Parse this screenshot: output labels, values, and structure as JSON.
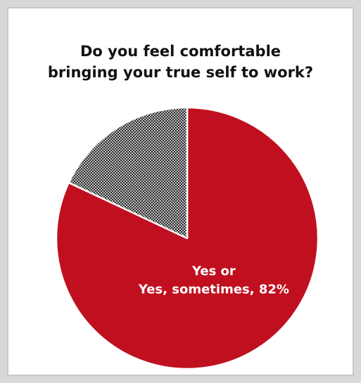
{
  "chart_data": {
    "type": "pie",
    "title_lines": [
      "Do you feel comfortable",
      "bringing your true self to work?"
    ],
    "slices": [
      {
        "label_lines": [
          "Yes or",
          "Yes, sometimes, 82%"
        ],
        "value": 82,
        "color": "#c0101f",
        "pattern": "solid"
      },
      {
        "label_lines": [],
        "value": 18,
        "color": "#333333",
        "pattern": "crosshatch"
      }
    ]
  }
}
